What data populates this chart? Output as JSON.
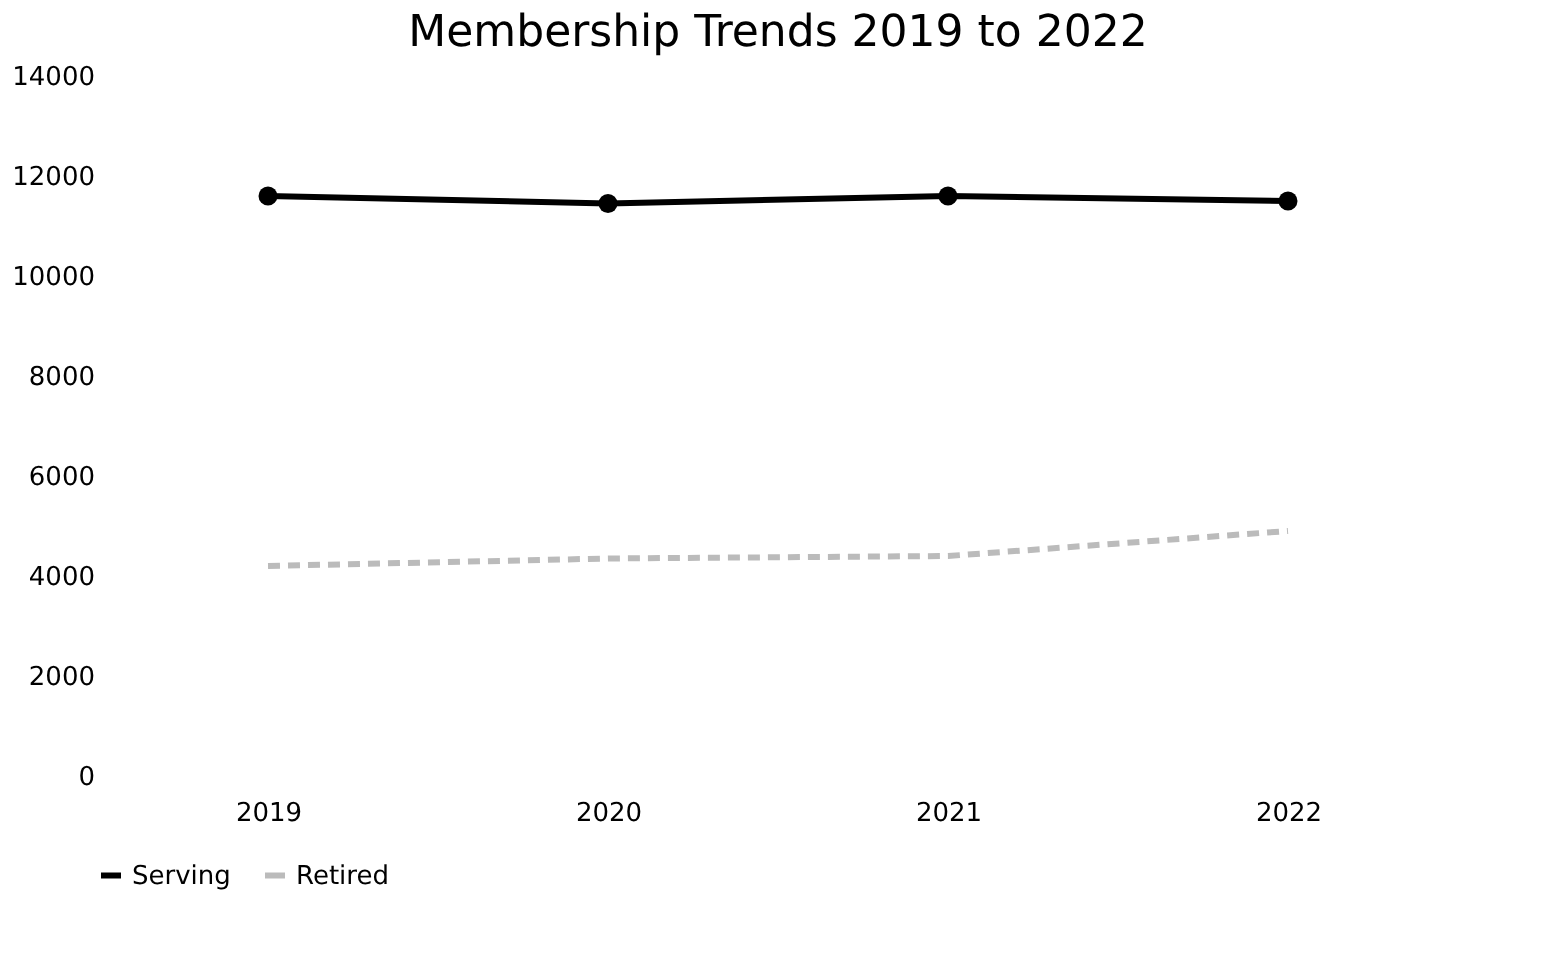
{
  "chart_data": {
    "type": "line",
    "title": "Membership Trends 2019 to 2022",
    "categories": [
      "2019",
      "2020",
      "2021",
      "2022"
    ],
    "series": [
      {
        "name": "Serving",
        "color": "#000000",
        "values": [
          11600,
          11450,
          11600,
          11500
        ],
        "marker": "circle",
        "line_style": "solid"
      },
      {
        "name": "Retired",
        "color": "#bbbbbb",
        "values": [
          4200,
          4350,
          4400,
          4900
        ],
        "marker": "none",
        "line_style": "dashed"
      }
    ],
    "ylim": [
      0,
      14000
    ],
    "yticks": [
      0,
      2000,
      4000,
      6000,
      8000,
      10000,
      12000,
      14000
    ],
    "grid": false,
    "legend": "bottom"
  }
}
